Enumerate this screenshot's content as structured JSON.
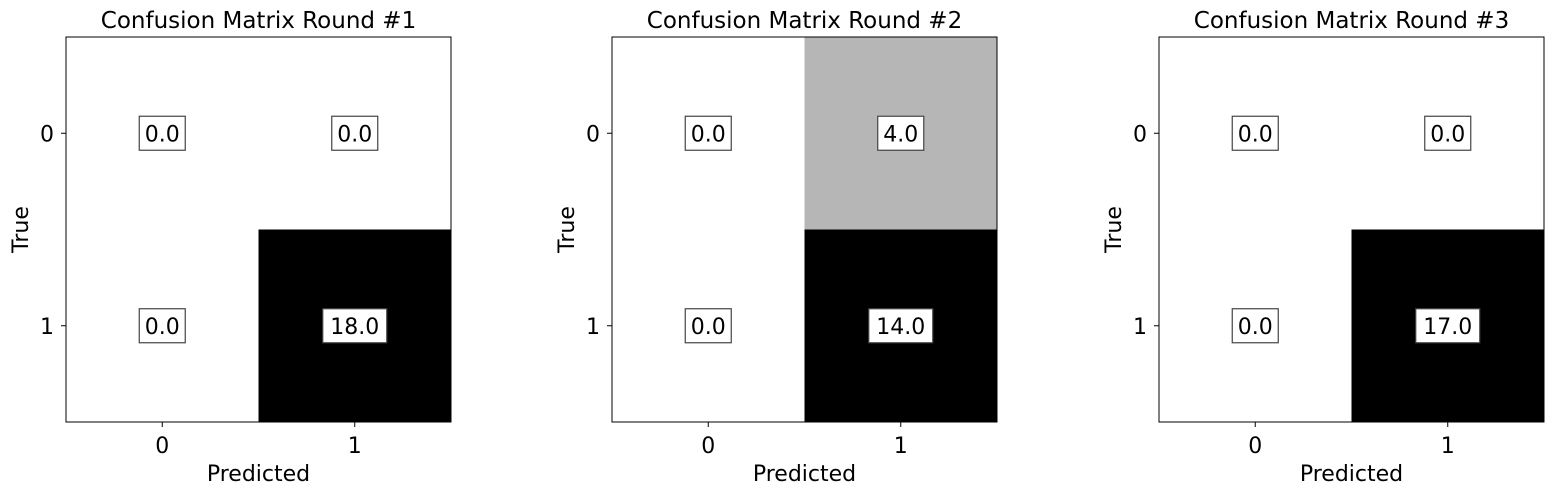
{
  "chart_data": [
    {
      "type": "heatmap",
      "title": "Confusion Matrix Round #1",
      "xlabel": "Predicted",
      "ylabel": "True",
      "x_ticks": [
        "0",
        "1"
      ],
      "y_ticks": [
        "0",
        "1"
      ],
      "values": [
        [
          0.0,
          0.0
        ],
        [
          0.0,
          18.0
        ]
      ],
      "cell_labels": [
        [
          "0.0",
          "0.0"
        ],
        [
          "0.0",
          "18.0"
        ]
      ],
      "colormap": "Greys",
      "vmax": 18.0
    },
    {
      "type": "heatmap",
      "title": "Confusion Matrix Round #2",
      "xlabel": "Predicted",
      "ylabel": "True",
      "x_ticks": [
        "0",
        "1"
      ],
      "y_ticks": [
        "0",
        "1"
      ],
      "values": [
        [
          0.0,
          4.0
        ],
        [
          0.0,
          14.0
        ]
      ],
      "cell_labels": [
        [
          "0.0",
          "4.0"
        ],
        [
          "0.0",
          "14.0"
        ]
      ],
      "colormap": "Greys",
      "vmax": 14.0
    },
    {
      "type": "heatmap",
      "title": "Confusion Matrix Round #3",
      "xlabel": "Predicted",
      "ylabel": "True",
      "x_ticks": [
        "0",
        "1"
      ],
      "y_ticks": [
        "0",
        "1"
      ],
      "values": [
        [
          0.0,
          0.0
        ],
        [
          0.0,
          17.0
        ]
      ],
      "cell_labels": [
        [
          "0.0",
          "0.0"
        ],
        [
          "0.0",
          "17.0"
        ]
      ],
      "colormap": "Greys",
      "vmax": 17.0
    }
  ]
}
